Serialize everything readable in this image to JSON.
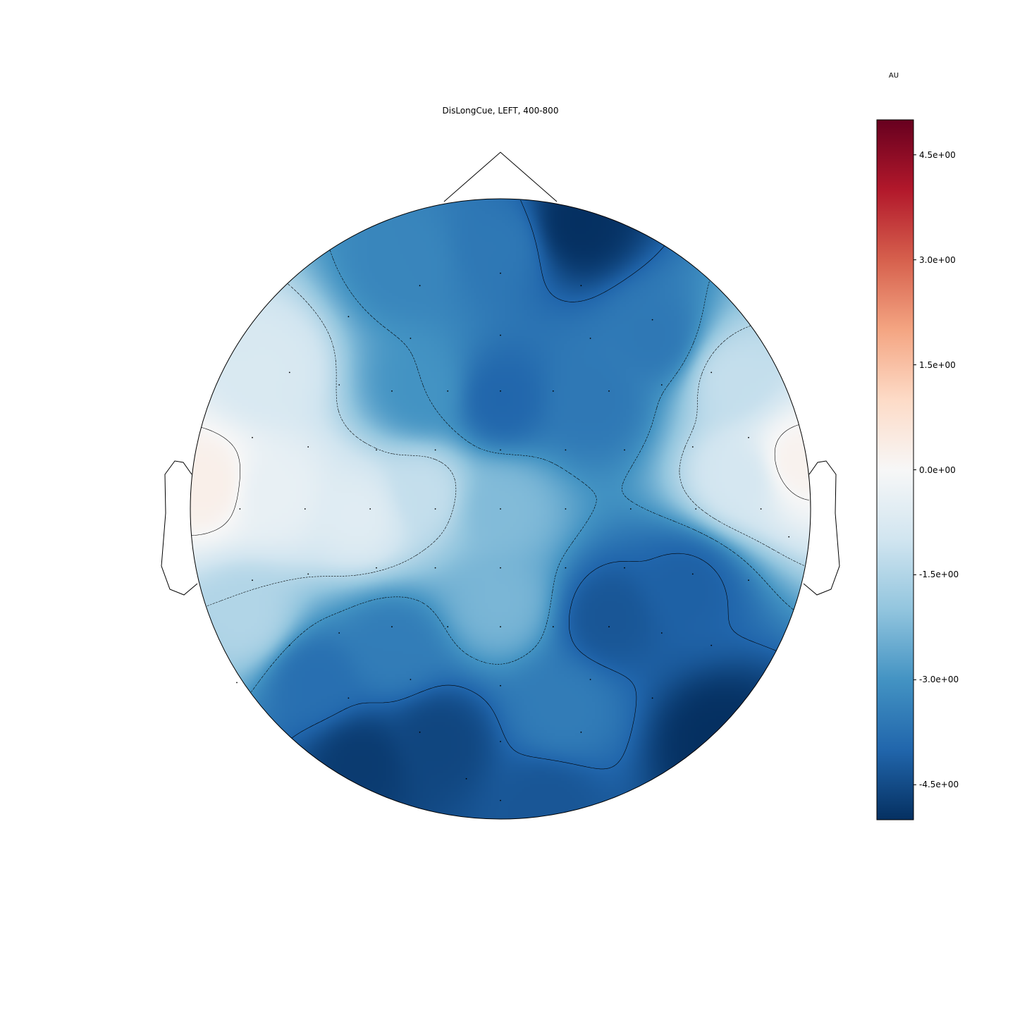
{
  "chart_data": {
    "type": "heatmap",
    "title": "DisLongCue, LEFT, 400-800",
    "colorbar": {
      "unit": "AU",
      "range": [
        -5.0,
        5.0
      ],
      "colormap": "RdBu_r",
      "tick_labels": [
        "4.5e+00",
        "3.0e+00",
        "1.5e+00",
        "0.0e+00",
        "-1.5e+00",
        "-3.0e+00",
        "-4.5e+00"
      ],
      "tick_values": [
        4.5,
        3.0,
        1.5,
        0.0,
        -1.5,
        -3.0,
        -4.5
      ]
    },
    "contour_levels": [
      -4.0,
      -3.0,
      -1.5,
      0.0
    ],
    "scalp_field_sources": [
      {
        "x": -0.95,
        "y": 0.08,
        "value": 0.3
      },
      {
        "x": -0.72,
        "y": 0.05,
        "value": -0.4
      },
      {
        "x": -0.45,
        "y": -0.02,
        "value": -0.6
      },
      {
        "x": -0.25,
        "y": 0.05,
        "value": -1.2
      },
      {
        "x": -0.75,
        "y": 0.45,
        "value": -0.8
      },
      {
        "x": -0.82,
        "y": -0.35,
        "value": -1.5
      },
      {
        "x": 0.95,
        "y": 0.15,
        "value": 0.2
      },
      {
        "x": 0.78,
        "y": 0.1,
        "value": -0.9
      },
      {
        "x": 0.75,
        "y": 0.42,
        "value": -1.2
      },
      {
        "x": 0.25,
        "y": 0.92,
        "value": -5.0
      },
      {
        "x": 0.0,
        "y": 0.85,
        "value": -3.6
      },
      {
        "x": -0.3,
        "y": 0.8,
        "value": -3.3
      },
      {
        "x": 0.0,
        "y": 0.35,
        "value": -4.0
      },
      {
        "x": 0.3,
        "y": 0.35,
        "value": -3.6
      },
      {
        "x": -0.25,
        "y": 0.38,
        "value": -3.0
      },
      {
        "x": 0.5,
        "y": 0.55,
        "value": -3.6
      },
      {
        "x": 0.0,
        "y": 0.0,
        "value": -2.2
      },
      {
        "x": 0.0,
        "y": -0.3,
        "value": -2.3
      },
      {
        "x": 0.35,
        "y": -0.35,
        "value": -4.3
      },
      {
        "x": 0.6,
        "y": -0.25,
        "value": -4.1
      },
      {
        "x": -0.35,
        "y": -0.45,
        "value": -3.5
      },
      {
        "x": -0.6,
        "y": -0.55,
        "value": -3.8
      },
      {
        "x": -0.45,
        "y": -0.82,
        "value": -4.8
      },
      {
        "x": -0.2,
        "y": -0.75,
        "value": -4.6
      },
      {
        "x": 0.2,
        "y": -0.65,
        "value": -3.5
      },
      {
        "x": 0.7,
        "y": -0.75,
        "value": -5.0
      },
      {
        "x": 0.15,
        "y": -0.95,
        "value": -4.3
      }
    ],
    "sensors": [
      [
        -0.26,
        0.72
      ],
      [
        0,
        0.76
      ],
      [
        0.26,
        0.72
      ],
      [
        -0.49,
        0.62
      ],
      [
        -0.29,
        0.55
      ],
      [
        0,
        0.56
      ],
      [
        0.29,
        0.55
      ],
      [
        0.49,
        0.61
      ],
      [
        -0.68,
        0.44
      ],
      [
        -0.52,
        0.4
      ],
      [
        -0.35,
        0.38
      ],
      [
        -0.17,
        0.38
      ],
      [
        0,
        0.38
      ],
      [
        0.17,
        0.38
      ],
      [
        0.35,
        0.38
      ],
      [
        0.52,
        0.4
      ],
      [
        0.68,
        0.44
      ],
      [
        -0.8,
        0.23
      ],
      [
        -0.62,
        0.2
      ],
      [
        -0.4,
        0.19
      ],
      [
        -0.21,
        0.19
      ],
      [
        0,
        0.19
      ],
      [
        0.21,
        0.19
      ],
      [
        0.4,
        0.19
      ],
      [
        0.62,
        0.2
      ],
      [
        0.8,
        0.23
      ],
      [
        -0.84,
        0
      ],
      [
        -0.63,
        0
      ],
      [
        -0.42,
        0
      ],
      [
        -0.21,
        0
      ],
      [
        0,
        0
      ],
      [
        0.21,
        0
      ],
      [
        0.42,
        0
      ],
      [
        0.63,
        0
      ],
      [
        0.84,
        0
      ],
      [
        0.93,
        -0.09
      ],
      [
        -0.8,
        -0.23
      ],
      [
        -0.62,
        -0.21
      ],
      [
        -0.4,
        -0.19
      ],
      [
        -0.21,
        -0.19
      ],
      [
        0,
        -0.19
      ],
      [
        0.21,
        -0.19
      ],
      [
        0.4,
        -0.19
      ],
      [
        0.62,
        -0.21
      ],
      [
        0.8,
        -0.23
      ],
      [
        -0.68,
        -0.44
      ],
      [
        -0.52,
        -0.4
      ],
      [
        -0.35,
        -0.38
      ],
      [
        -0.17,
        -0.38
      ],
      [
        0,
        -0.38
      ],
      [
        0.17,
        -0.38
      ],
      [
        0.35,
        -0.38
      ],
      [
        0.52,
        -0.4
      ],
      [
        0.68,
        -0.44
      ],
      [
        -0.85,
        -0.56
      ],
      [
        -0.49,
        -0.61
      ],
      [
        -0.29,
        -0.55
      ],
      [
        0,
        -0.57
      ],
      [
        0.29,
        -0.55
      ],
      [
        0.49,
        -0.61
      ],
      [
        -0.26,
        -0.72
      ],
      [
        0,
        -0.75
      ],
      [
        0.26,
        -0.72
      ],
      [
        -0.11,
        -0.87
      ],
      [
        0,
        -0.94
      ]
    ]
  }
}
